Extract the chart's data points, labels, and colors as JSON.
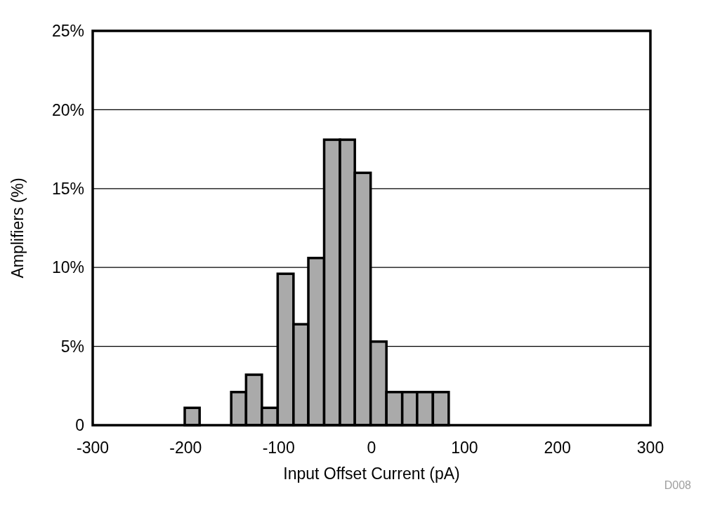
{
  "chart_data": {
    "type": "histogram",
    "xlabel": "Input Offset Current (pA)",
    "ylabel": "Amplifiers (%)",
    "bins": [
      -201,
      -185,
      -151,
      -135,
      -118,
      -101,
      -84,
      -68,
      -51,
      -34,
      -18,
      -1,
      16,
      33,
      49,
      66,
      83
    ],
    "values": [
      1.1,
      0,
      2.1,
      3.2,
      1.1,
      9.6,
      6.4,
      10.6,
      18.1,
      18.1,
      16.0,
      5.3,
      2.1,
      2.1,
      2.1,
      2.1
    ],
    "color": "#aaaaaa",
    "xlim": [
      -300,
      300
    ],
    "xticks": [
      -300,
      -200,
      -100,
      0,
      100,
      200,
      300
    ],
    "ylim": [
      0,
      25
    ],
    "yticks": [
      0,
      {
        "value": 5,
        "label": "5%"
      },
      {
        "value": 10,
        "label": "10%"
      },
      {
        "value": 15,
        "label": "15%"
      },
      {
        "value": 20,
        "label": "20%"
      },
      {
        "value": 25,
        "label": "25%"
      }
    ],
    "grid": "y",
    "annotations": [
      "D008"
    ]
  }
}
